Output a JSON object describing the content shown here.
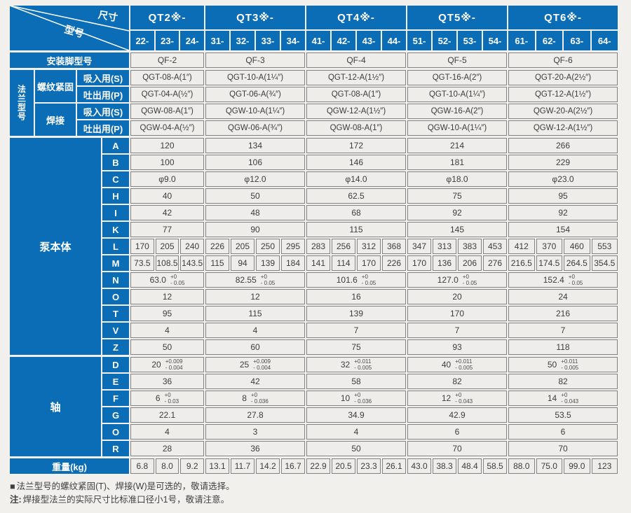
{
  "table": {
    "corner": {
      "top": "尺寸",
      "bottom": "型号"
    },
    "groups": [
      {
        "label": "QT2※-",
        "subs": [
          "22-",
          "23-",
          "24-"
        ]
      },
      {
        "label": "QT3※-",
        "subs": [
          "31-",
          "32-",
          "33-",
          "34-"
        ]
      },
      {
        "label": "QT4※-",
        "subs": [
          "41-",
          "42-",
          "43-",
          "44-"
        ]
      },
      {
        "label": "QT5※-",
        "subs": [
          "51-",
          "52-",
          "53-",
          "54-"
        ]
      },
      {
        "label": "QT6※-",
        "subs": [
          "61-",
          "62-",
          "63-",
          "64-"
        ]
      }
    ],
    "mount": {
      "label": "安装脚型号",
      "values": [
        "QF-2",
        "QF-3",
        "QF-4",
        "QF-5",
        "QF-6"
      ]
    },
    "flange": {
      "label": "法兰型号",
      "sections": [
        {
          "label": "螺纹紧固",
          "rows": [
            {
              "label": "吸入用(S)",
              "values": [
                "QGT-08-A(1″)",
                "QGT-10-A(1¼″)",
                "QGT-12-A(1½″)",
                "QGT-16-A(2″)",
                "QGT-20-A(2½″)"
              ]
            },
            {
              "label": "吐出用(P)",
              "values": [
                "QGT-04-A(½″)",
                "QGT-06-A(¾″)",
                "QGT-08-A(1″)",
                "QGT-10-A(1¼″)",
                "QGT-12-A(1½″)"
              ]
            }
          ]
        },
        {
          "label": "焊接",
          "rows": [
            {
              "label": "吸入用(S)",
              "values": [
                "QGW-08-A(1″)",
                "QGW-10-A(1¼″)",
                "QGW-12-A(1½″)",
                "QGW-16-A(2″)",
                "QGW-20-A(2½″)"
              ]
            },
            {
              "label": "吐出用(P)",
              "values": [
                "QGW-04-A(½″)",
                "QGW-06-A(¾″)",
                "QGW-08-A(1″)",
                "QGW-10-A(1¼″)",
                "QGW-12-A(1½″)"
              ]
            }
          ]
        }
      ]
    },
    "body": {
      "label": "泵本体",
      "rows": [
        {
          "label": "A",
          "type": "group",
          "values": [
            "120",
            "134",
            "172",
            "214",
            "266"
          ]
        },
        {
          "label": "B",
          "type": "group",
          "values": [
            "100",
            "106",
            "146",
            "181",
            "229"
          ]
        },
        {
          "label": "C",
          "type": "group",
          "values": [
            "φ9.0",
            "φ12.0",
            "φ14.0",
            "φ18.0",
            "φ23.0"
          ]
        },
        {
          "label": "H",
          "type": "group",
          "values": [
            "40",
            "50",
            "62.5",
            "75",
            "95"
          ]
        },
        {
          "label": "I",
          "type": "group",
          "values": [
            "42",
            "48",
            "68",
            "92",
            "92"
          ]
        },
        {
          "label": "K",
          "type": "group",
          "values": [
            "77",
            "90",
            "115",
            "145",
            "154"
          ]
        },
        {
          "label": "L",
          "type": "col",
          "values": [
            "170",
            "205",
            "240",
            "226",
            "205",
            "250",
            "295",
            "283",
            "256",
            "312",
            "368",
            "347",
            "313",
            "383",
            "453",
            "412",
            "370",
            "460",
            "553"
          ]
        },
        {
          "label": "M",
          "type": "col",
          "values": [
            "73.5",
            "108.5",
            "143.5",
            "115",
            "94",
            "139",
            "184",
            "141",
            "114",
            "170",
            "226",
            "170",
            "136",
            "206",
            "276",
            "216.5",
            "174.5",
            "264.5",
            "354.5"
          ]
        },
        {
          "label": "N",
          "type": "tol",
          "values": [
            {
              "v": "63.0",
              "p": "+0",
              "m": "- 0.05"
            },
            {
              "v": "82.55",
              "p": "+0",
              "m": "- 0.05"
            },
            {
              "v": "101.6",
              "p": "+0",
              "m": "- 0.05"
            },
            {
              "v": "127.0",
              "p": "+0",
              "m": "- 0.05"
            },
            {
              "v": "152.4",
              "p": "+0",
              "m": "- 0.05"
            }
          ]
        },
        {
          "label": "O",
          "type": "group",
          "values": [
            "12",
            "12",
            "16",
            "20",
            "24"
          ]
        },
        {
          "label": "T",
          "type": "group",
          "values": [
            "95",
            "115",
            "139",
            "170",
            "216"
          ]
        },
        {
          "label": "V",
          "type": "group",
          "values": [
            "4",
            "4",
            "7",
            "7",
            "7"
          ]
        },
        {
          "label": "Z",
          "type": "group",
          "values": [
            "50",
            "60",
            "75",
            "93",
            "118"
          ]
        }
      ]
    },
    "shaft": {
      "label": "轴",
      "rows": [
        {
          "label": "D",
          "type": "tol",
          "values": [
            {
              "v": "20",
              "p": "+0.009",
              "m": "- 0.004"
            },
            {
              "v": "25",
              "p": "+0.009",
              "m": "- 0.004"
            },
            {
              "v": "32",
              "p": "+0.011",
              "m": "- 0.005"
            },
            {
              "v": "40",
              "p": "+0.011",
              "m": "- 0.005"
            },
            {
              "v": "50",
              "p": "+0.011",
              "m": "- 0.005"
            }
          ]
        },
        {
          "label": "E",
          "type": "group",
          "values": [
            "36",
            "42",
            "58",
            "82",
            "82"
          ]
        },
        {
          "label": "F",
          "type": "tol",
          "values": [
            {
              "v": "6",
              "p": "+0",
              "m": "- 0.03"
            },
            {
              "v": "8",
              "p": "+0",
              "m": "- 0.036"
            },
            {
              "v": "10",
              "p": "+0",
              "m": "- 0.036"
            },
            {
              "v": "12",
              "p": "+0",
              "m": "- 0.043"
            },
            {
              "v": "14",
              "p": "+0",
              "m": "- 0.043"
            }
          ]
        },
        {
          "label": "G",
          "type": "group",
          "values": [
            "22.1",
            "27.8",
            "34.9",
            "42.9",
            "53.5"
          ]
        },
        {
          "label": "O",
          "type": "group",
          "values": [
            "4",
            "3",
            "4",
            "6",
            "6"
          ]
        },
        {
          "label": "R",
          "type": "group",
          "values": [
            "28",
            "36",
            "50",
            "70",
            "70"
          ]
        }
      ]
    },
    "weight": {
      "label": "重量(kg)",
      "values": [
        "6.8",
        "8.0",
        "9.2",
        "13.1",
        "11.7",
        "14.2",
        "16.7",
        "22.9",
        "20.5",
        "23.3",
        "26.1",
        "43.0",
        "38.3",
        "48.4",
        "58.5",
        "88.0",
        "75.0",
        "99.0",
        "123"
      ]
    }
  },
  "footnotes": [
    {
      "prefix": "■",
      "text": "法兰型号的螺纹紧固(T)、焊接(W)是可选的，敬请选择。"
    },
    {
      "prefix": "注:",
      "text": "焊接型法兰的实际尺寸比标准口径小1号，敬请注意。"
    }
  ],
  "colors": {
    "header_blue": "#0b6db5",
    "cell_bg": "#eeede9",
    "cell_border": "#828282",
    "page_bg": "#f1f0ec"
  }
}
